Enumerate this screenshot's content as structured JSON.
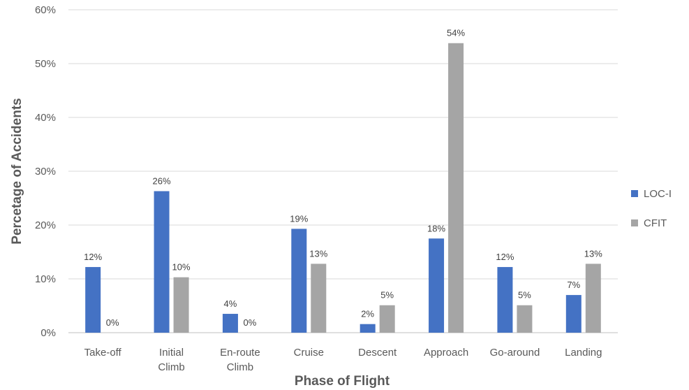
{
  "chart_data": {
    "type": "bar",
    "xlabel": "Phase of Flight",
    "ylabel": "Percetage of Accidents",
    "ylim": [
      0,
      60
    ],
    "yticks": [
      0,
      10,
      20,
      30,
      40,
      50,
      60
    ],
    "ytick_labels": [
      "0%",
      "10%",
      "20%",
      "30%",
      "40%",
      "50%",
      "60%"
    ],
    "grid": true,
    "legend_position": "right",
    "categories": [
      [
        "Take-off"
      ],
      [
        "Initial",
        "Climb"
      ],
      [
        "En-route",
        "Climb"
      ],
      [
        "Cruise"
      ],
      [
        "Descent"
      ],
      [
        "Approach"
      ],
      [
        "Go-around"
      ],
      [
        "Landing"
      ]
    ],
    "series": [
      {
        "name": "LOC-I",
        "color": "#4472C4",
        "values": [
          12.2,
          26.3,
          3.5,
          19.3,
          1.6,
          17.5,
          12.2,
          7.0
        ],
        "labels": [
          "12%",
          "26%",
          "4%",
          "19%",
          "2%",
          "18%",
          "12%",
          "7%"
        ]
      },
      {
        "name": "CFIT",
        "color": "#A5A5A5",
        "values": [
          0,
          10.3,
          0,
          12.8,
          5.1,
          53.8,
          5.1,
          12.8
        ],
        "labels": [
          "0%",
          "10%",
          "0%",
          "13%",
          "5%",
          "54%",
          "5%",
          "13%"
        ]
      }
    ]
  }
}
